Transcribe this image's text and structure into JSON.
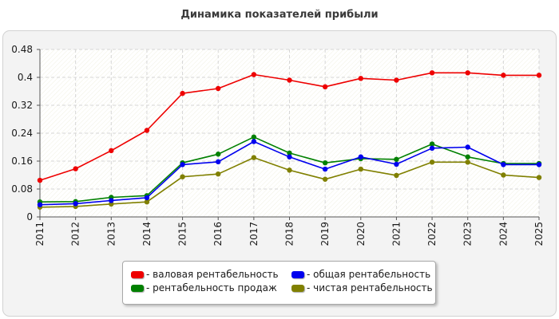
{
  "chart_data": {
    "type": "line",
    "title": "Динамика показателей прибыли",
    "x": [
      "2011",
      "2012",
      "2013",
      "2014",
      "2015",
      "2016",
      "2017",
      "2018",
      "2019",
      "2020",
      "2021",
      "2022",
      "2023",
      "2024",
      "2025"
    ],
    "ylim": [
      0,
      0.48
    ],
    "yticks": [
      "0",
      "0.08",
      "0.16",
      "0.24",
      "0.32",
      "0.4",
      "0.48"
    ],
    "grid": true,
    "legend_position": "bottom",
    "series": [
      {
        "name": "- валовая рентабельность",
        "color": "#ee0000",
        "values": [
          0.105,
          0.138,
          0.19,
          0.248,
          0.354,
          0.368,
          0.408,
          0.392,
          0.373,
          0.397,
          0.392,
          0.413,
          0.413,
          0.406,
          0.406
        ]
      },
      {
        "name": "- общая рентабельность",
        "color": "#0000ee",
        "values": [
          0.035,
          0.038,
          0.047,
          0.055,
          0.15,
          0.158,
          0.216,
          0.172,
          0.137,
          0.172,
          0.151,
          0.197,
          0.2,
          0.15,
          0.15
        ]
      },
      {
        "name": "- рентабельность продаж",
        "color": "#008000",
        "values": [
          0.043,
          0.044,
          0.056,
          0.061,
          0.155,
          0.18,
          0.229,
          0.183,
          0.155,
          0.167,
          0.165,
          0.209,
          0.172,
          0.153,
          0.153
        ]
      },
      {
        "name": "- чистая рентабельность",
        "color": "#808000",
        "values": [
          0.028,
          0.03,
          0.037,
          0.043,
          0.115,
          0.123,
          0.17,
          0.134,
          0.108,
          0.137,
          0.119,
          0.157,
          0.157,
          0.12,
          0.113
        ]
      }
    ]
  },
  "legend": {
    "items": [
      {
        "label": "- валовая рентабельность",
        "color": "#ee0000"
      },
      {
        "label": "- общая рентабельность",
        "color": "#0000ee"
      },
      {
        "label": "- рентабельность продаж",
        "color": "#008000"
      },
      {
        "label": "- чистая рентабельность",
        "color": "#808000"
      }
    ]
  }
}
